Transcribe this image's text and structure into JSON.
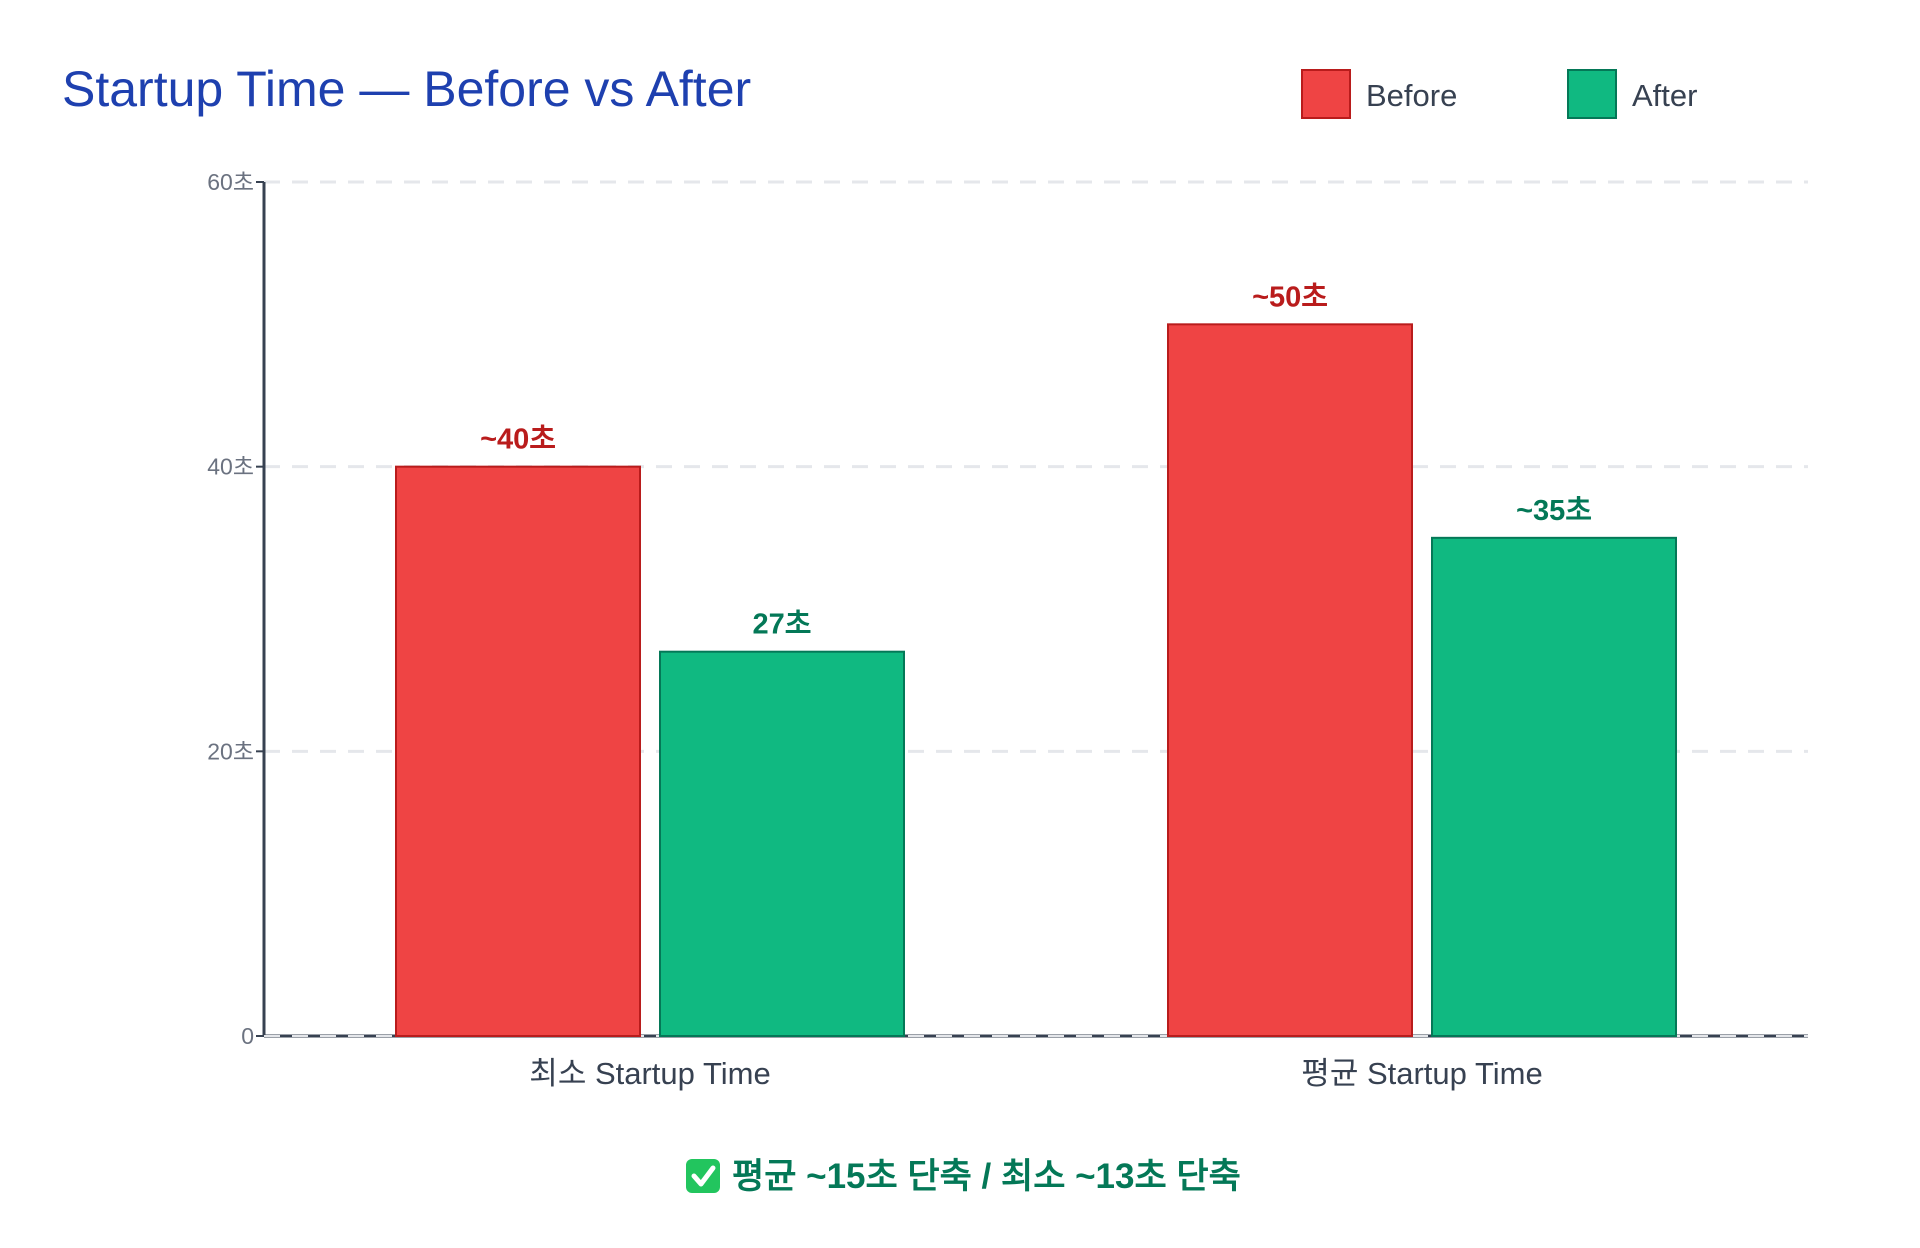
{
  "chart_data": {
    "type": "bar",
    "title": "Startup Time — Before vs After",
    "categories": [
      "최소 Startup Time",
      "평균 Startup Time"
    ],
    "series": [
      {
        "name": "Before",
        "values": [
          40,
          50
        ],
        "labels": [
          "~40초",
          "~50초"
        ],
        "color": "#ef4444",
        "border_color": "#b91c1c",
        "label_color": "#b91c1c"
      },
      {
        "name": "After",
        "values": [
          27,
          35
        ],
        "labels": [
          "27초",
          "~35초"
        ],
        "color": "#10b981",
        "border_color": "#047857",
        "label_color": "#047857"
      }
    ],
    "ylim": [
      0,
      60
    ],
    "y_ticks": [
      0,
      20,
      40,
      60
    ],
    "y_tick_labels": [
      "0",
      "20초",
      "40초",
      "60초"
    ],
    "grid": true,
    "legend_position": "top-right",
    "footnote": {
      "icon": "check-mark-button-icon",
      "text": "평균 ~15초 단축 / 최소 ~13초 단축"
    }
  }
}
